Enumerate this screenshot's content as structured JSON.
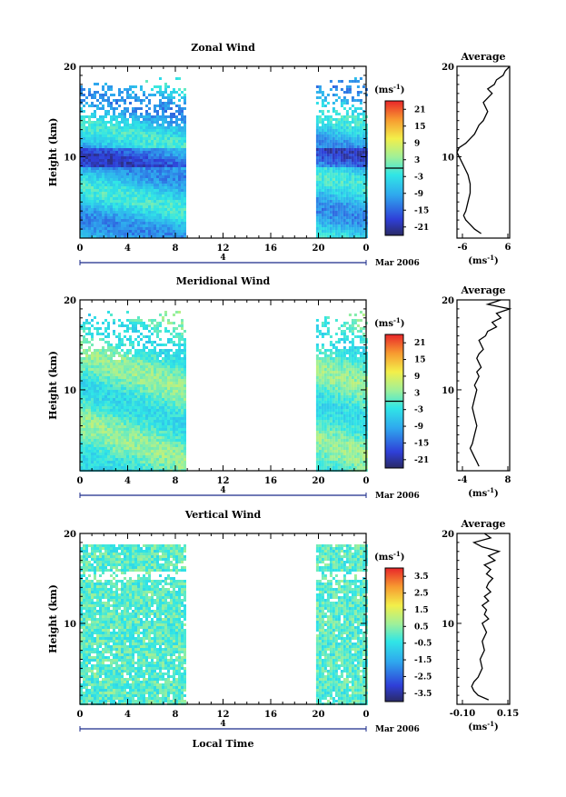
{
  "common": {
    "date_label": "Mar 2006",
    "day_label": "4",
    "height_axis_label": "Height (km)",
    "time_axis_label": "Local Time",
    "x_ticks": [
      "0",
      "4",
      "8",
      "12",
      "16",
      "20",
      "0"
    ],
    "y_ticks": [
      "20",
      "10"
    ],
    "cb_unit": "(ms",
    "avg_unit": "(ms",
    "unit_exp": "-1",
    "unit_close": ")"
  },
  "panels": [
    {
      "title": "Zonal Wind",
      "avg_title": "Average",
      "cb_labels": [
        "21",
        "15",
        "9",
        "3",
        "-3",
        "-9",
        "-15",
        "-21"
      ],
      "avg_xticks": [
        "-6",
        "6"
      ]
    },
    {
      "title": "Meridional Wind",
      "avg_title": "Average",
      "cb_labels": [
        "21",
        "15",
        "9",
        "3",
        "-3",
        "-9",
        "-15",
        "-21"
      ],
      "avg_xticks": [
        "-4",
        "8"
      ]
    },
    {
      "title": "Vertical Wind",
      "avg_title": "Average",
      "cb_labels": [
        "3.5",
        "2.5",
        "1.5",
        "0.5",
        "-0.5",
        "-1.5",
        "-2.5",
        "-3.5"
      ],
      "avg_xticks": [
        "-0.10",
        "0.15"
      ]
    }
  ],
  "chart_data": [
    {
      "type": "heatmap",
      "title": "Zonal Wind",
      "xlabel": "",
      "ylabel": "Height (km)",
      "x_range_hours": [
        0,
        24
      ],
      "y_range_km": [
        1,
        20
      ],
      "data_coverage_hours": [
        [
          0,
          8.8
        ],
        [
          19.8,
          24
        ]
      ],
      "colorbar": {
        "unit": "ms-1",
        "range": [
          -21,
          21
        ],
        "ticks": [
          21,
          15,
          9,
          3,
          -3,
          -9,
          -15,
          -21
        ]
      },
      "cmap": "jet"
    },
    {
      "type": "line",
      "title": "Average",
      "xlabel": "(ms-1)",
      "ylabel": "",
      "xlim": [
        -6,
        6
      ],
      "ylim": [
        1,
        20
      ],
      "x": [
        -0.5,
        -2,
        -3,
        -4,
        -4.5,
        -4,
        -3.5,
        -3,
        -3,
        -3.5,
        -4.5,
        -5.5,
        -6,
        -5.5,
        -4,
        -3,
        -2,
        -1.5,
        -1,
        0,
        0.5,
        1,
        0.5,
        0,
        1,
        2,
        1,
        2.5,
        3,
        4.5,
        5,
        6
      ],
      "y": [
        1.5,
        2,
        2.5,
        3,
        3.5,
        4,
        5,
        6,
        7,
        8,
        9,
        10,
        10.5,
        11,
        11.5,
        12,
        12.5,
        13,
        13.5,
        14,
        14.5,
        15,
        15.5,
        16,
        16.5,
        17,
        17.5,
        18,
        18.5,
        19,
        19.5,
        20
      ]
    },
    {
      "type": "heatmap",
      "title": "Meridional Wind",
      "xlabel": "",
      "ylabel": "Height (km)",
      "x_range_hours": [
        0,
        24
      ],
      "y_range_km": [
        1,
        20
      ],
      "data_coverage_hours": [
        [
          0,
          8.8
        ],
        [
          19.8,
          24
        ]
      ],
      "colorbar": {
        "unit": "ms-1",
        "range": [
          -21,
          21
        ],
        "ticks": [
          21,
          15,
          9,
          3,
          -3,
          -9,
          -15,
          -21
        ]
      },
      "cmap": "jet"
    },
    {
      "type": "line",
      "title": "Average",
      "xlabel": "(ms-1)",
      "ylabel": "",
      "xlim": [
        -4,
        8
      ],
      "ylim": [
        1,
        20
      ],
      "x": [
        1,
        0.5,
        0,
        -0.5,
        -1,
        -0.5,
        0,
        0.5,
        0,
        -0.5,
        0,
        0.5,
        0,
        0.5,
        1,
        0.5,
        1.5,
        1,
        0.5,
        1,
        2,
        1.5,
        1,
        2.5,
        3,
        5,
        4,
        6,
        5,
        8,
        3,
        6
      ],
      "y": [
        1.5,
        2,
        2.5,
        3,
        3.5,
        4,
        5,
        6,
        7,
        8,
        9,
        10,
        10.5,
        11,
        11.5,
        12,
        12.5,
        13,
        13.5,
        14,
        14.5,
        15,
        15.5,
        16,
        16.5,
        17,
        17.5,
        18,
        18.5,
        19,
        19.5,
        20
      ]
    },
    {
      "type": "heatmap",
      "title": "Vertical Wind",
      "xlabel": "Local Time",
      "ylabel": "Height (km)",
      "x_range_hours": [
        0,
        24
      ],
      "y_range_km": [
        1,
        20
      ],
      "data_coverage_hours": [
        [
          0,
          8.8
        ],
        [
          19.8,
          24
        ]
      ],
      "colorbar": {
        "unit": "ms-1",
        "range": [
          -3.5,
          3.5
        ],
        "ticks": [
          3.5,
          2.5,
          1.5,
          0.5,
          -0.5,
          -1.5,
          -2.5,
          -3.5
        ]
      },
      "cmap": "jet"
    },
    {
      "type": "line",
      "title": "Average",
      "xlabel": "(ms-1)",
      "ylabel": "",
      "xlim": [
        -0.1,
        0.15
      ],
      "ylim": [
        1,
        20
      ],
      "x": [
        0.05,
        0,
        -0.02,
        -0.03,
        -0.02,
        0,
        0.02,
        0.01,
        0.03,
        0.02,
        0.04,
        0.02,
        0.05,
        0.03,
        0.04,
        0.02,
        0.05,
        0.03,
        0.06,
        0.04,
        0.05,
        0.07,
        0.04,
        0.06,
        0.03,
        0.08,
        0.05,
        0.1,
        0.02,
        -0.02,
        0.06,
        0.03
      ],
      "y": [
        1.5,
        2,
        2.5,
        3,
        3.5,
        4,
        5,
        6,
        7,
        8,
        9,
        10,
        10.5,
        11,
        11.5,
        12,
        12.5,
        13,
        13.5,
        14,
        14.5,
        15,
        15.5,
        16,
        16.5,
        17,
        17.5,
        18,
        18.5,
        19,
        19.5,
        20
      ]
    }
  ]
}
